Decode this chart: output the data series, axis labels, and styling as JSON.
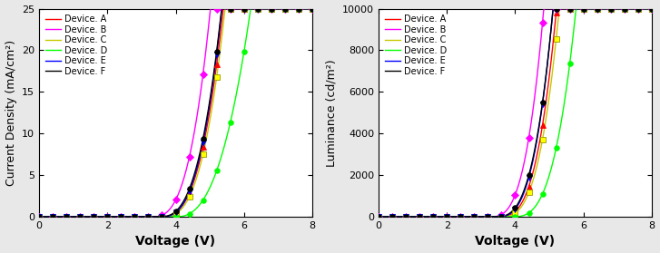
{
  "left_ylabel": "Current Density (mA/cm²)",
  "right_ylabel": "Luminance (cd/m²)",
  "xlabel": "Voltage (V)",
  "xlim": [
    0,
    8
  ],
  "left_ylim": [
    0,
    25
  ],
  "right_ylim": [
    0,
    10000
  ],
  "left_yticks": [
    0,
    5,
    10,
    15,
    20,
    25
  ],
  "right_yticks": [
    0,
    2000,
    4000,
    6000,
    8000,
    10000
  ],
  "xticks": [
    0,
    2,
    4,
    6,
    8
  ],
  "devices": [
    "Device. A",
    "Device. B",
    "Device. C",
    "Device. D",
    "Device. E",
    "Device. F"
  ],
  "colors": [
    "red",
    "magenta",
    "#c8c800",
    "lime",
    "blue",
    "black"
  ],
  "markers": [
    "^",
    "D",
    "s",
    "o",
    "v",
    "o"
  ],
  "marker_face_colors": [
    "red",
    "magenta",
    "yellow",
    "lime",
    "blue",
    "black"
  ],
  "marker_edge_colors": [
    "red",
    "magenta",
    "#999900",
    "lime",
    "blue",
    "black"
  ],
  "background_color": "#e8e8e8",
  "plot_bg_color": "#ffffff",
  "marker_size": 4,
  "linewidth": 1.0,
  "legend_fontsize": 7,
  "axis_label_fontsize": 10,
  "tick_fontsize": 8,
  "cd_params": {
    "A": {
      "v0": 3.55,
      "scale": 4.5,
      "exp": 2.8
    },
    "B": {
      "v0": 3.3,
      "scale": 5.5,
      "exp": 2.8
    },
    "C": {
      "v0": 3.6,
      "scale": 4.5,
      "exp": 2.8
    },
    "D": {
      "v0": 4.0,
      "scale": 3.5,
      "exp": 2.5
    },
    "E": {
      "v0": 3.55,
      "scale": 4.8,
      "exp": 2.8
    },
    "F": {
      "v0": 3.5,
      "scale": 4.5,
      "exp": 2.8
    }
  },
  "lum_params": {
    "A": {
      "v0": 3.5,
      "scale": 2000,
      "exp": 3.0
    },
    "B": {
      "v0": 3.25,
      "scale": 2500,
      "exp": 3.0
    },
    "C": {
      "v0": 3.55,
      "scale": 1900,
      "exp": 3.0
    },
    "D": {
      "v0": 3.9,
      "scale": 1500,
      "exp": 3.0
    },
    "E": {
      "v0": 3.45,
      "scale": 2200,
      "exp": 3.0
    },
    "F": {
      "v0": 3.4,
      "scale": 2000,
      "exp": 3.0
    }
  }
}
